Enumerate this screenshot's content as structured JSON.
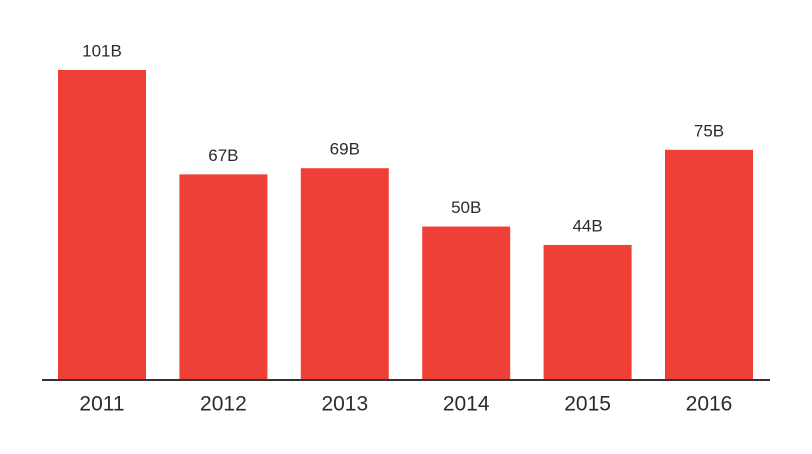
{
  "chart_data": {
    "type": "bar",
    "categories": [
      "2011",
      "2012",
      "2013",
      "2014",
      "2015",
      "2016"
    ],
    "values": [
      101,
      67,
      69,
      50,
      44,
      75
    ],
    "value_labels": [
      "101B",
      "67B",
      "69B",
      "50B",
      "44B",
      "75B"
    ],
    "color": "#ee4037"
  }
}
